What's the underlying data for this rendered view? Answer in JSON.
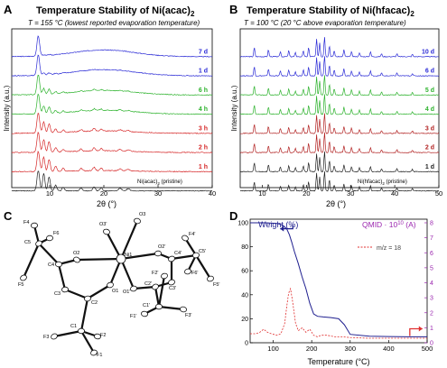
{
  "panel_A": {
    "letter": "A",
    "title": "Temperature Stability of Ni(acac)",
    "title_sub": "2",
    "subtitle": "T = 155 °C (lowest reported evaporation temperature)",
    "ylabel": "Intensity (a.u.)",
    "xlabel": "2θ (°)",
    "pristine_label": "Ni(acac)",
    "pristine_sub": "2",
    "pristine_suffix": " (pristine)"
  },
  "panel_B": {
    "letter": "B",
    "title": "Temperature Stability of Ni(hfacac)",
    "title_sub": "2",
    "subtitle": "T = 100 °C (20 °C above evaporation temperature)",
    "ylabel": "Intensity (a.u.)",
    "xlabel": "2θ (°)",
    "pristine_label": "Ni(hfacac)",
    "pristine_sub": "2",
    "pristine_suffix": " (pristine)"
  },
  "panel_C": {
    "letter": "C",
    "atoms": [
      "F4",
      "F6",
      "C5",
      "O3'",
      "O3",
      "O2",
      "O2'",
      "F4'",
      "C5'",
      "F6'",
      "C4",
      "Ni1",
      "C4'",
      "F2'",
      "C3'",
      "F5'",
      "C3",
      "O1",
      "O1'",
      "C2'",
      "C1'",
      "F5",
      "C2",
      "F1'",
      "F3'",
      "C1",
      "F2",
      "F3",
      "F1"
    ]
  },
  "panel_D": {
    "letter": "D",
    "ylabel_left": "Weight (%)",
    "ylabel_right": "QMID · 10",
    "ylabel_right_exp": "10",
    "ylabel_right_unit": " (A)",
    "xlabel": "Temperature (°C)",
    "legend": "m/z = 18"
  },
  "colors": {
    "blue": "#2b2bd6",
    "green": "#2cb22c",
    "red": "#d62728",
    "black": "#222222",
    "navy": "#1f1f8f",
    "purple": "#9b27af",
    "ms_red": "#e03030"
  },
  "chart_data": [
    {
      "id": "A",
      "type": "line",
      "title": "Temperature Stability of Ni(acac)2",
      "xlabel": "2θ (°)",
      "ylabel": "Intensity (a.u.)",
      "xlim": [
        3,
        40
      ],
      "xticks": [
        10,
        20,
        30,
        40
      ],
      "peaks": [
        {
          "x": 7.9,
          "h": 1.0,
          "w": 0.35
        },
        {
          "x": 8.9,
          "h": 0.85,
          "w": 0.3
        },
        {
          "x": 9.9,
          "h": 0.7,
          "w": 0.3
        },
        {
          "x": 11.1,
          "h": 0.3,
          "w": 0.3
        },
        {
          "x": 12.5,
          "h": 0.18,
          "w": 0.3
        },
        {
          "x": 15.8,
          "h": 0.15,
          "w": 0.3
        },
        {
          "x": 18.2,
          "h": 0.2,
          "w": 0.3
        },
        {
          "x": 19.5,
          "h": 0.15,
          "w": 0.3
        },
        {
          "x": 23.0,
          "h": 0.12,
          "w": 0.4
        },
        {
          "x": 24.5,
          "h": 0.1,
          "w": 0.4
        }
      ],
      "series": [
        {
          "name": "7 d",
          "color": "#2b2bd6",
          "crystallinity": 0.05
        },
        {
          "name": "1 d",
          "color": "#2b2bd6",
          "crystallinity": 0.12
        },
        {
          "name": "6 h",
          "color": "#2cb22c",
          "crystallinity": 0.35
        },
        {
          "name": "4 h",
          "color": "#2cb22c",
          "crystallinity": 0.45
        },
        {
          "name": "3 h",
          "color": "#d62728",
          "crystallinity": 0.65
        },
        {
          "name": "2 h",
          "color": "#d62728",
          "crystallinity": 0.75
        },
        {
          "name": "1 h",
          "color": "#d62728",
          "crystallinity": 0.85
        },
        {
          "name": "pristine",
          "color": "#222222",
          "crystallinity": 1.0
        }
      ]
    },
    {
      "id": "B",
      "type": "line",
      "title": "Temperature Stability of Ni(hfacac)2",
      "xlabel": "2θ (°)",
      "ylabel": "Intensity (a.u.)",
      "xlim": [
        5,
        50
      ],
      "xticks": [
        10,
        20,
        30,
        40,
        50
      ],
      "peaks": [
        {
          "x": 8.2,
          "h": 0.45
        },
        {
          "x": 11.4,
          "h": 0.35
        },
        {
          "x": 14.1,
          "h": 0.25
        },
        {
          "x": 16.0,
          "h": 0.3
        },
        {
          "x": 17.5,
          "h": 0.2
        },
        {
          "x": 19.3,
          "h": 0.3
        },
        {
          "x": 20.5,
          "h": 0.45
        },
        {
          "x": 22.3,
          "h": 0.9
        },
        {
          "x": 23.0,
          "h": 0.7
        },
        {
          "x": 24.1,
          "h": 1.0
        },
        {
          "x": 25.2,
          "h": 0.55
        },
        {
          "x": 26.3,
          "h": 0.3
        },
        {
          "x": 28.5,
          "h": 0.35
        },
        {
          "x": 30.2,
          "h": 0.25
        },
        {
          "x": 32.0,
          "h": 0.2
        },
        {
          "x": 34.5,
          "h": 0.25
        },
        {
          "x": 37.0,
          "h": 0.15
        },
        {
          "x": 40.5,
          "h": 0.15
        },
        {
          "x": 44.0,
          "h": 0.12
        }
      ],
      "series": [
        {
          "name": "10 d",
          "color": "#2b2bd6"
        },
        {
          "name": "6 d",
          "color": "#2b2bd6"
        },
        {
          "name": "5 d",
          "color": "#2cb22c"
        },
        {
          "name": "4 d",
          "color": "#2cb22c"
        },
        {
          "name": "3 d",
          "color": "#b22222"
        },
        {
          "name": "2 d",
          "color": "#b22222"
        },
        {
          "name": "1 d",
          "color": "#222222"
        },
        {
          "name": "pristine",
          "color": "#222222"
        }
      ]
    },
    {
      "id": "D",
      "type": "line",
      "xlabel": "Temperature (°C)",
      "xlim": [
        40,
        500
      ],
      "xticks": [
        100,
        200,
        300,
        400,
        500
      ],
      "y_left": {
        "label": "Weight (%)",
        "lim": [
          0,
          100
        ],
        "ticks": [
          0,
          20,
          40,
          60,
          80,
          100
        ]
      },
      "y_right": {
        "label": "QMID · 10^10 (A)",
        "lim": [
          0,
          8
        ],
        "ticks": [
          0,
          1,
          2,
          3,
          4,
          5,
          6,
          7,
          8
        ]
      },
      "series": [
        {
          "name": "Weight",
          "axis": "left",
          "color": "#1f1f8f",
          "x": [
            40,
            80,
            110,
            125,
            135,
            142,
            148,
            155,
            165,
            175,
            185,
            195,
            205,
            215,
            230,
            250,
            270,
            285,
            300,
            350,
            400,
            450,
            500
          ],
          "y": [
            100,
            100,
            99.5,
            98,
            95,
            90,
            84,
            76,
            66,
            55,
            45,
            33,
            24,
            22,
            21.5,
            21,
            20,
            15,
            7,
            5.5,
            5.2,
            5.0,
            5.0
          ]
        },
        {
          "name": "m/z = 18",
          "axis": "right",
          "color": "#e03030",
          "x": [
            40,
            55,
            65,
            75,
            85,
            95,
            110,
            120,
            130,
            135,
            140,
            145,
            150,
            158,
            165,
            175,
            185,
            195,
            205,
            215,
            225,
            240,
            260,
            280,
            300,
            350,
            400,
            450,
            500
          ],
          "y": [
            0.6,
            0.6,
            0.7,
            0.9,
            0.7,
            0.6,
            0.5,
            0.6,
            1.3,
            2.4,
            3.3,
            3.6,
            2.8,
            1.3,
            0.8,
            1.0,
            0.7,
            0.9,
            0.5,
            0.4,
            0.5,
            0.5,
            0.4,
            0.4,
            0.35,
            0.3,
            0.3,
            0.3,
            0.3
          ]
        }
      ]
    }
  ]
}
